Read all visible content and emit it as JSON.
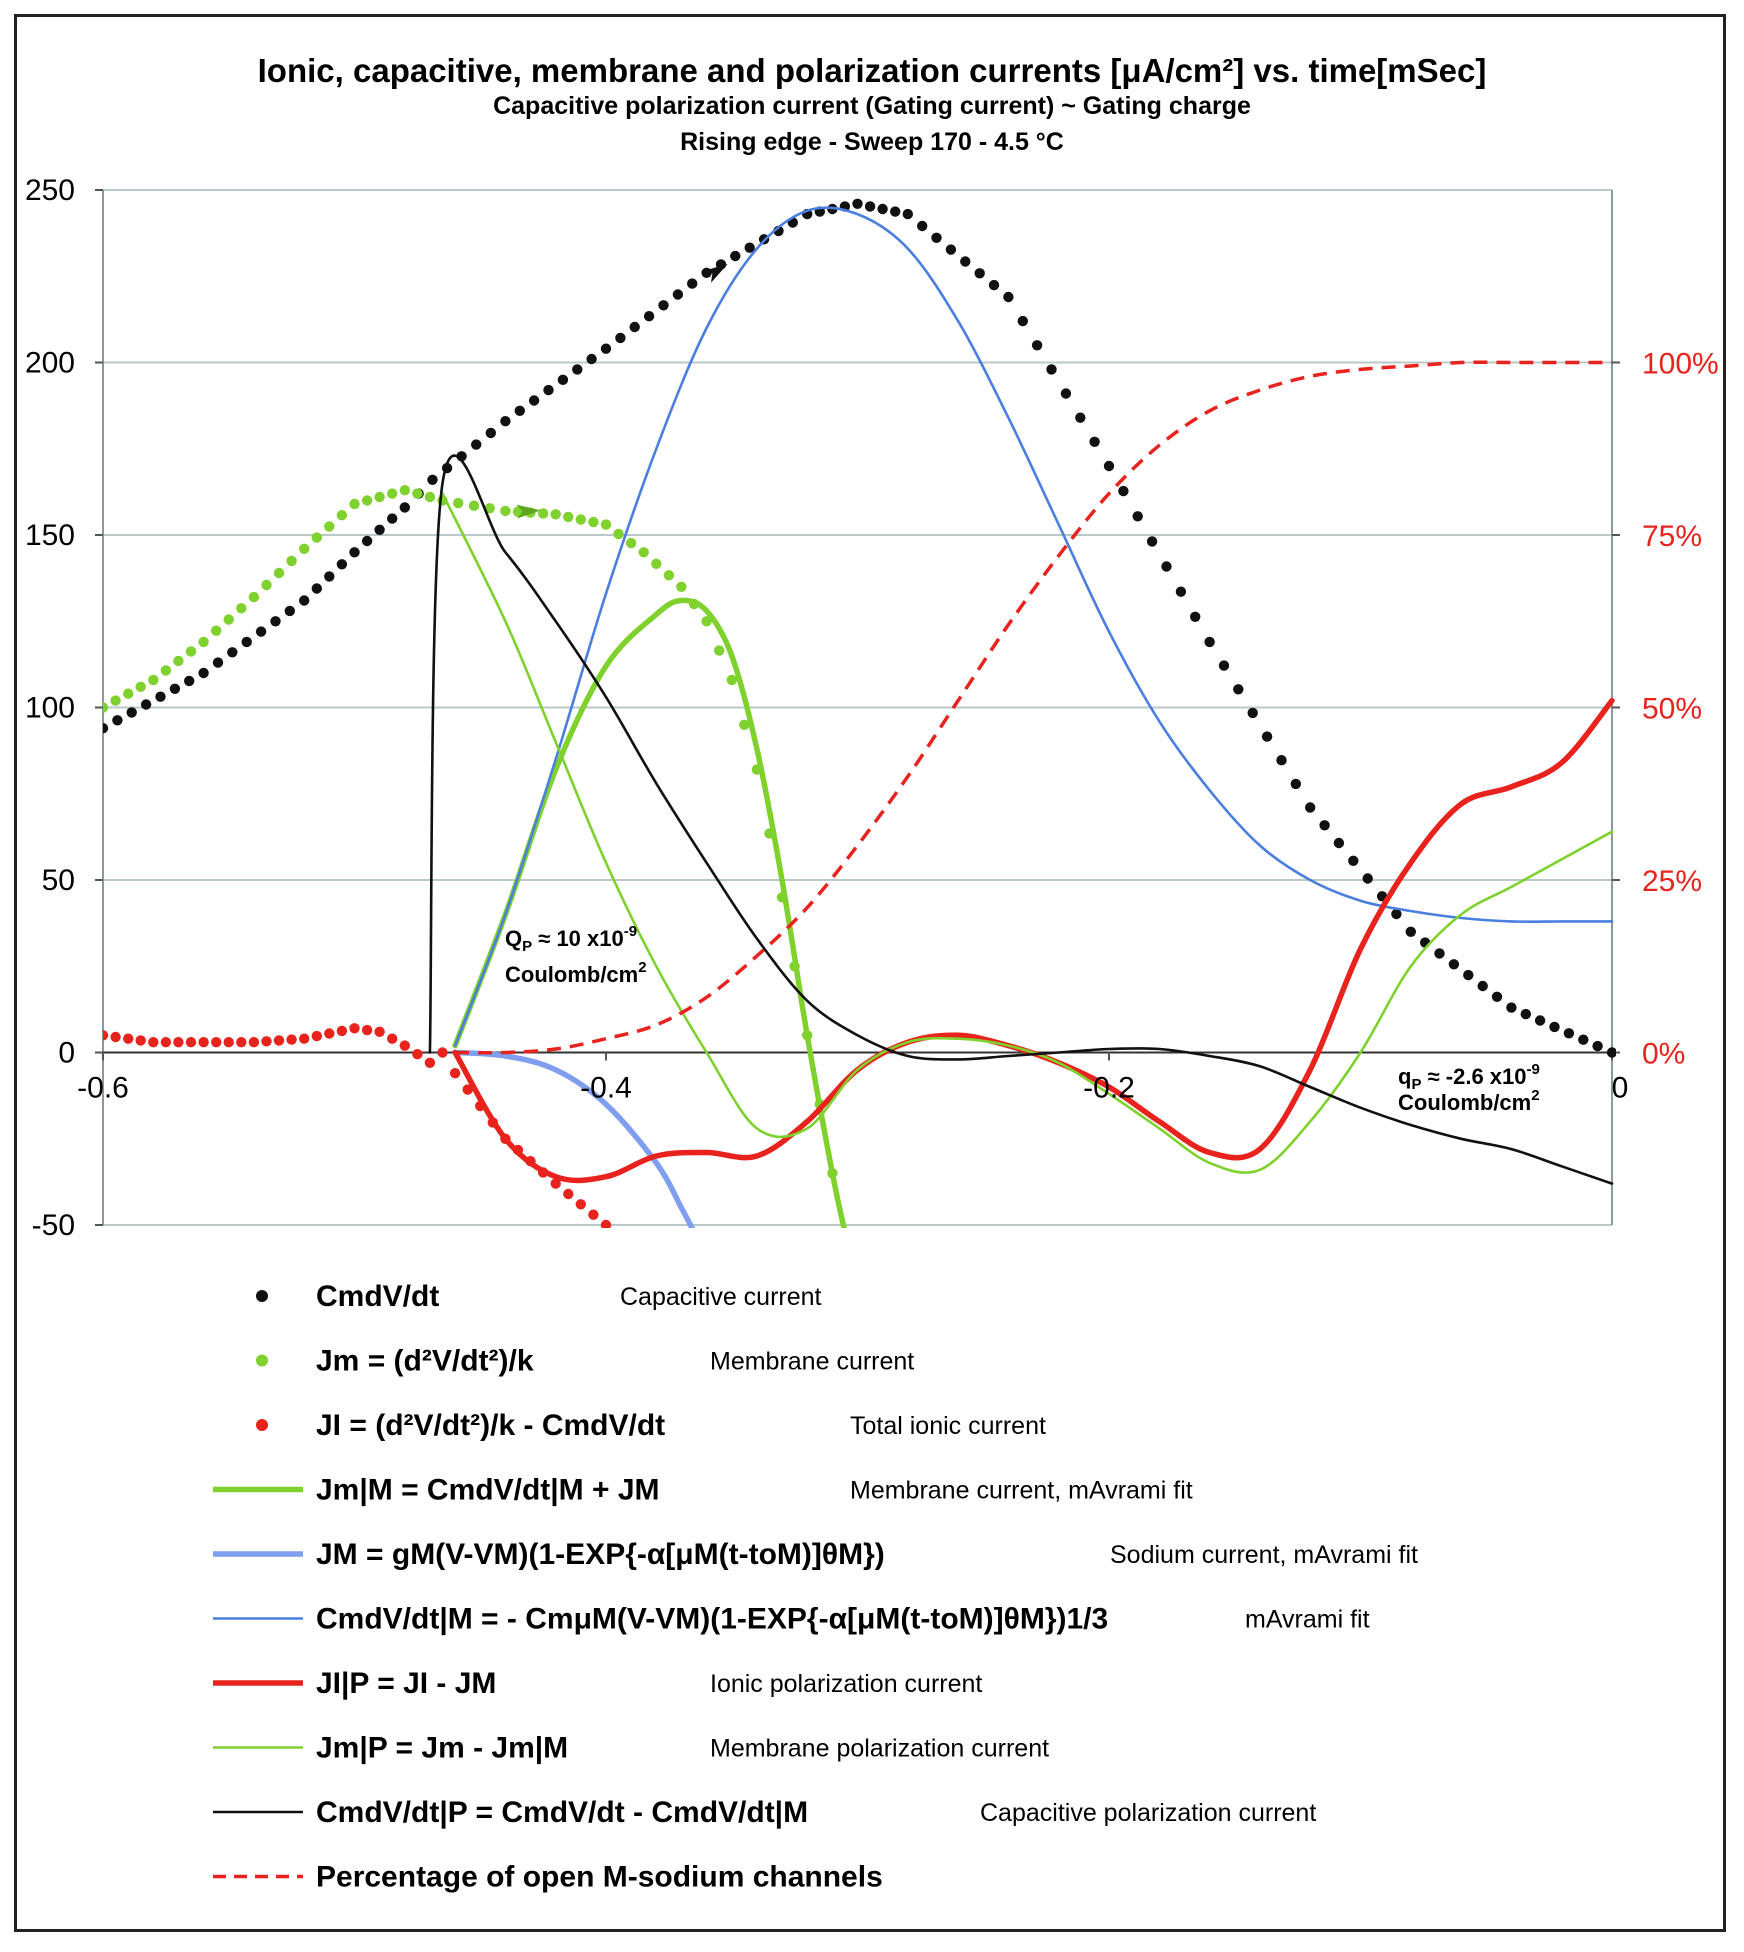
{
  "title": "Ionic, capacitive, membrane and polarization currents [μA/cm²]  vs. time[mSec]",
  "subtitle1": "Capacitive polarization current (Gating current) ~ Gating charge",
  "subtitle2": "Rising edge - Sweep 170 - 4.5 °C",
  "annotations": {
    "qp_left_line1": "Q",
    "qp_left_sub": "P",
    "qp_left_rest": " ≈ 10 x10",
    "qp_left_exp": "-9",
    "qp_left_line2": "Coulomb/cm",
    "qp_left_line2_exp": "2",
    "qp_right_line1": "q",
    "qp_right_sub": "P",
    "qp_right_rest": " ≈ -2.6 x10",
    "qp_right_exp": "-9",
    "qp_right_line2": "Coulomb/cm",
    "qp_right_line2_exp": "2"
  },
  "legend": [
    {
      "marker": "dot",
      "color": "#111111",
      "eq": "CmdV/dt",
      "desc": "Capacitive current"
    },
    {
      "marker": "dot",
      "color": "#7fd12e",
      "eq": "Jm = (d²V/dt²)/k",
      "desc": "Membrane current"
    },
    {
      "marker": "dot",
      "color": "#e8231d",
      "eq": "JI = (d²V/dt²)/k - CmdV/dt",
      "desc": "Total ionic current"
    },
    {
      "marker": "thick",
      "color": "#7fd12e",
      "eq": "Jm|M = CmdV/dt|M + JM",
      "desc": "Membrane current, mAvrami fit"
    },
    {
      "marker": "thick",
      "color": "#7f9ef0",
      "eq": "JM = gM(V-VM)(1-EXP{-α[μM(t-toM)]θM})",
      "desc": "Sodium current, mAvrami fit"
    },
    {
      "marker": "thin",
      "color": "#4a7fe0",
      "eq": "CmdV/dt|M = - CmμM(V-VM)(1-EXP{-α[μM(t-toM)]θM})1/3",
      "desc": "mAvrami fit"
    },
    {
      "marker": "thick",
      "color": "#e8231d",
      "eq": "JI|P = JI - JM",
      "desc": "Ionic polarization current"
    },
    {
      "marker": "thin",
      "color": "#7fd12e",
      "eq": "Jm|P = Jm - Jm|M",
      "desc": "Membrane polarization current"
    },
    {
      "marker": "thin",
      "color": "#111111",
      "eq": "CmdV/dt|P = CmdV/dt - CmdV/dt|M",
      "desc": "Capacitive polarization current"
    },
    {
      "marker": "dash",
      "color": "#e8231d",
      "eq": "Percentage of open M-sodium channels",
      "desc": ""
    }
  ],
  "chart_data": {
    "type": "line",
    "title": "Ionic, capacitive, membrane and polarization currents [μA/cm²]  vs. time[mSec]",
    "xlim": [
      -0.6,
      0
    ],
    "ylim": [
      -50,
      250
    ],
    "y2lim": [
      0,
      100
    ],
    "x_ticks": [
      -0.6,
      -0.4,
      -0.2,
      0
    ],
    "x_tick_labels": [
      "-0.6",
      "-0.4",
      "-0.2",
      "0"
    ],
    "y_ticks": [
      -50,
      0,
      50,
      100,
      150,
      200,
      250
    ],
    "y_tick_labels": [
      "-50",
      "0",
      "50",
      "100",
      "150",
      "200",
      "250"
    ],
    "y2_ticks": [
      0,
      25,
      50,
      75,
      100
    ],
    "y2_tick_labels": [
      "0%",
      "25%",
      "50%",
      "75%",
      "100%"
    ],
    "grid": "horizontal",
    "series": [
      {
        "name": "CmdV/dt",
        "style": "dots",
        "color": "#111111",
        "axis": "left",
        "x": [
          -0.6,
          -0.56,
          -0.52,
          -0.5,
          -0.48,
          -0.469,
          -0.44,
          -0.4,
          -0.36,
          -0.32,
          -0.3,
          -0.28,
          -0.24,
          -0.2,
          -0.16,
          -0.12,
          -0.08,
          -0.04,
          0
        ],
        "y": [
          94,
          110,
          131,
          145,
          158,
          166,
          183,
          204,
          226,
          243,
          246,
          243,
          219,
          170,
          119,
          71,
          35,
          13,
          0
        ]
      },
      {
        "name": "Jm = (d²V/dt²)/k",
        "style": "dots",
        "color": "#7fd12e",
        "axis": "left",
        "x": [
          -0.6,
          -0.58,
          -0.56,
          -0.54,
          -0.52,
          -0.5,
          -0.48,
          -0.465,
          -0.44,
          -0.42,
          -0.4,
          -0.385,
          -0.37,
          -0.36,
          -0.35,
          -0.34,
          -0.33,
          -0.32,
          -0.31
        ],
        "y": [
          100,
          108,
          119,
          132,
          146,
          159,
          163,
          160,
          157,
          156,
          153,
          145,
          135,
          125,
          108,
          82,
          45,
          5,
          -35
        ]
      },
      {
        "name": "JI = (d²V/dt²)/k - CmdV/dt",
        "style": "dots",
        "color": "#e8231d",
        "axis": "left",
        "x": [
          -0.6,
          -0.58,
          -0.56,
          -0.54,
          -0.52,
          -0.5,
          -0.49,
          -0.48,
          -0.47,
          -0.465,
          -0.46,
          -0.44,
          -0.42,
          -0.4
        ],
        "y": [
          5,
          3,
          3,
          3,
          4,
          7,
          6,
          2,
          -3,
          0,
          -6,
          -25,
          -38,
          -50
        ]
      },
      {
        "name": "Jm|M = CmdV/dt|M + JM",
        "style": "thick",
        "color": "#7fd12e",
        "axis": "left",
        "x": [
          -0.46,
          -0.44,
          -0.42,
          -0.4,
          -0.38,
          -0.37,
          -0.36,
          -0.35,
          -0.34,
          -0.33,
          -0.32,
          -0.31,
          -0.305
        ],
        "y": [
          2,
          40,
          82,
          112,
          127,
          131,
          128,
          115,
          88,
          50,
          5,
          -35,
          -52
        ]
      },
      {
        "name": "JM = gM(V-VM)(1-EXP{-α[μM(t-toM)]θM})",
        "style": "thick",
        "color": "#7f9ef0",
        "axis": "left",
        "x": [
          -0.46,
          -0.44,
          -0.42,
          -0.4,
          -0.38,
          -0.37,
          -0.365
        ],
        "y": [
          0,
          -1,
          -5,
          -15,
          -32,
          -45,
          -52
        ]
      },
      {
        "name": "CmdV/dt|M = - CmμM(V-VM)(1-EXP{-α[μM(t-toM)]θM})1/3",
        "style": "thin",
        "color": "#4a7fe0",
        "axis": "left",
        "x": [
          -0.46,
          -0.44,
          -0.42,
          -0.4,
          -0.38,
          -0.36,
          -0.34,
          -0.32,
          -0.3,
          -0.28,
          -0.26,
          -0.24,
          -0.22,
          -0.2,
          -0.18,
          -0.16,
          -0.14,
          -0.12,
          -0.1,
          -0.08,
          -0.06,
          -0.04,
          -0.02,
          0
        ],
        "y": [
          2,
          40,
          85,
          133,
          175,
          210,
          233,
          244,
          243,
          233,
          212,
          184,
          153,
          122,
          96,
          76,
          60,
          50,
          44,
          41,
          39,
          38,
          38,
          38
        ]
      },
      {
        "name": "JI|P = JI - JM",
        "style": "thick",
        "color": "#e8231d",
        "axis": "left",
        "x": [
          -0.46,
          -0.44,
          -0.42,
          -0.4,
          -0.38,
          -0.36,
          -0.34,
          -0.32,
          -0.3,
          -0.28,
          -0.26,
          -0.24,
          -0.22,
          -0.2,
          -0.18,
          -0.16,
          -0.14,
          -0.12,
          -0.1,
          -0.08,
          -0.06,
          -0.04,
          -0.02,
          0
        ],
        "y": [
          0,
          -25,
          -36,
          -36,
          -30,
          -29,
          -30,
          -20,
          -5,
          3,
          5,
          2,
          -3,
          -10,
          -20,
          -29,
          -28,
          -5,
          30,
          55,
          72,
          77,
          84,
          102
        ]
      },
      {
        "name": "Jm|P = Jm - Jm|M",
        "style": "thin",
        "color": "#7fd12e",
        "axis": "left",
        "x": [
          -0.465,
          -0.44,
          -0.42,
          -0.4,
          -0.38,
          -0.36,
          -0.34,
          -0.32,
          -0.3,
          -0.28,
          -0.26,
          -0.24,
          -0.22,
          -0.2,
          -0.18,
          -0.16,
          -0.14,
          -0.12,
          -0.1,
          -0.08,
          -0.06,
          -0.04,
          -0.02,
          0
        ],
        "y": [
          162,
          125,
          90,
          55,
          25,
          0,
          -22,
          -22,
          -5,
          3,
          4,
          2,
          -3,
          -12,
          -22,
          -32,
          -34,
          -20,
          0,
          25,
          40,
          48,
          56,
          64
        ]
      },
      {
        "name": "CmdV/dt|P = CmdV/dt - CmdV/dt|M",
        "style": "thin",
        "color": "#111111",
        "axis": "left",
        "x": [
          -0.47,
          -0.465,
          -0.44,
          -0.42,
          -0.4,
          -0.38,
          -0.36,
          -0.34,
          -0.32,
          -0.3,
          -0.28,
          -0.26,
          -0.24,
          -0.22,
          -0.2,
          -0.18,
          -0.16,
          -0.14,
          -0.12,
          -0.1,
          -0.08,
          -0.06,
          -0.04,
          -0.02,
          0
        ],
        "y": [
          0,
          165,
          145,
          125,
          103,
          78,
          55,
          33,
          15,
          5,
          -1,
          -2,
          -1,
          0,
          1,
          1,
          -1,
          -4,
          -10,
          -16,
          -21,
          -25,
          -28,
          -33,
          -38
        ]
      },
      {
        "name": "Percentage of open M-sodium channels",
        "style": "dashed",
        "color": "#e8231d",
        "axis": "right",
        "x": [
          -0.46,
          -0.44,
          -0.42,
          -0.4,
          -0.38,
          -0.36,
          -0.34,
          -0.32,
          -0.3,
          -0.28,
          -0.26,
          -0.24,
          -0.22,
          -0.2,
          -0.18,
          -0.16,
          -0.14,
          -0.12,
          -0.1,
          -0.08,
          -0.06,
          -0.04,
          -0.02,
          0
        ],
        "y": [
          0,
          0,
          0.5,
          2,
          4,
          8,
          14,
          21,
          30,
          40,
          51,
          62,
          72,
          81,
          88,
          93,
          96,
          98,
          99,
          99.5,
          100,
          100,
          100,
          100
        ]
      }
    ]
  }
}
